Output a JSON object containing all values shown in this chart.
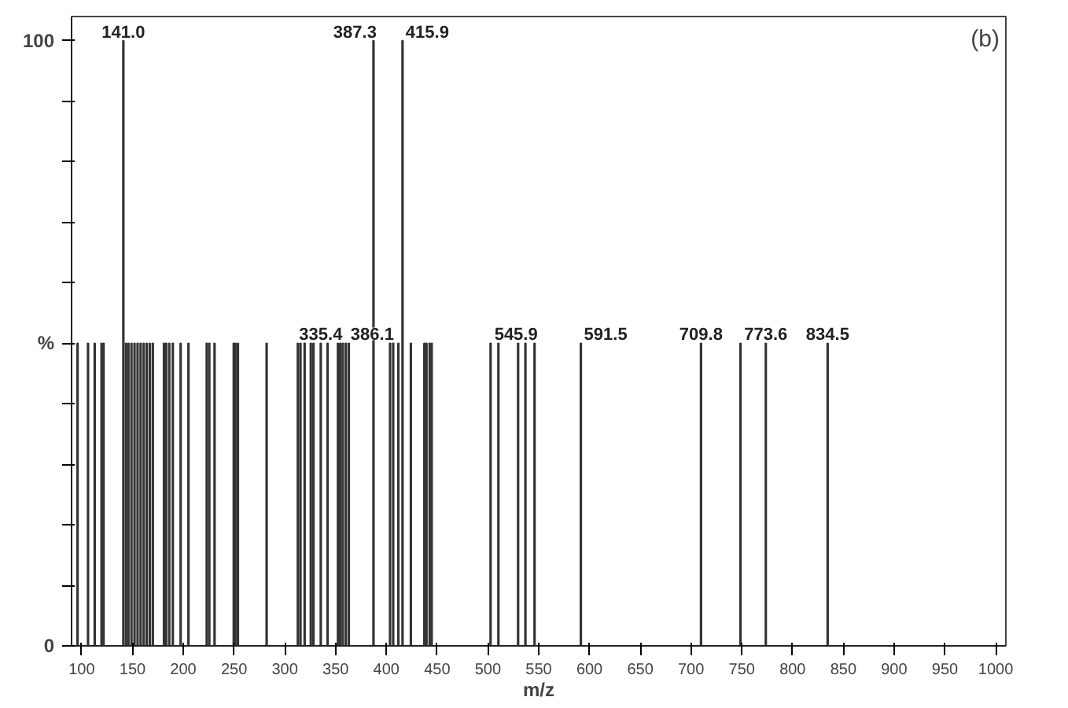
{
  "chart_data": {
    "type": "bar",
    "xlabel": "m/z",
    "annotations": [
      "(b)",
      {
        "text": "141.0",
        "x": 141.0,
        "y": 100
      },
      {
        "text": "335.4",
        "x": 335.4,
        "y": 50
      },
      {
        "text": "386.1",
        "x": 386.1,
        "y": 50
      },
      {
        "text": "387.3",
        "x": 387.3,
        "y": 100
      },
      {
        "text": "415.9",
        "x": 415.9,
        "y": 100
      },
      {
        "text": "545.9",
        "x": 545.9,
        "y": 50
      },
      {
        "text": "591.5",
        "x": 591.5,
        "y": 50
      },
      {
        "text": "709.8",
        "x": 709.8,
        "y": 50
      },
      {
        "text": "773.6",
        "x": 773.6,
        "y": 50
      },
      {
        "text": "834.5",
        "x": 834.5,
        "y": 50
      }
    ],
    "x": [
      95.9,
      106.2,
      112.8,
      119.5,
      121.5,
      141.0,
      143.6,
      146.0,
      149.0,
      152.0,
      155.0,
      158.0,
      161.0,
      164.0,
      167.0,
      170.0,
      181.0,
      183.1,
      186.2,
      189.7,
      197.4,
      205.1,
      223.1,
      225.6,
      230.8,
      249.7,
      251.3,
      253.8,
      282.1,
      312.8,
      315.4,
      319.5,
      325.6,
      328.2,
      335.4,
      342.1,
      352.3,
      354.5,
      357.0,
      360.0,
      363.0,
      386.1,
      387.3,
      403.6,
      406.7,
      411.8,
      415.9,
      424.1,
      437.4,
      439.5,
      442.6,
      444.6,
      502.6,
      510.3,
      529.7,
      536.9,
      545.9,
      591.5,
      709.8,
      748.7,
      773.6,
      834.5
    ],
    "values": [
      50,
      50,
      50,
      50,
      50,
      100,
      50,
      50,
      50,
      50,
      50,
      50,
      50,
      50,
      50,
      50,
      50,
      50,
      50,
      50,
      50,
      50,
      50,
      50,
      50,
      50,
      50,
      50,
      50,
      50,
      50,
      50,
      50,
      50,
      50,
      50,
      50,
      50,
      50,
      50,
      50,
      null,
      100,
      50,
      50,
      50,
      100,
      50,
      50,
      50,
      50,
      50,
      50,
      50,
      50,
      50,
      50,
      50,
      50,
      50,
      50,
      50
    ],
    "color": "#333333",
    "xlim": [
      90,
      1010
    ],
    "ylim": [
      0,
      104
    ],
    "xticks": [
      100,
      150,
      200,
      250,
      300,
      350,
      400,
      450,
      500,
      550,
      600,
      650,
      700,
      750,
      800,
      850,
      900,
      950,
      1000
    ],
    "yticks": [
      0,
      {
        "value": 10,
        "label": null
      },
      {
        "value": 20,
        "label": null
      },
      {
        "value": 30,
        "label": null
      },
      {
        "value": 40,
        "label": null
      },
      {
        "value": 50,
        "label": "%"
      },
      {
        "value": 60,
        "label": null
      },
      {
        "value": 70,
        "label": null
      },
      {
        "value": 80,
        "label": null
      },
      {
        "value": 90,
        "label": null
      },
      100
    ],
    "grid": false
  }
}
